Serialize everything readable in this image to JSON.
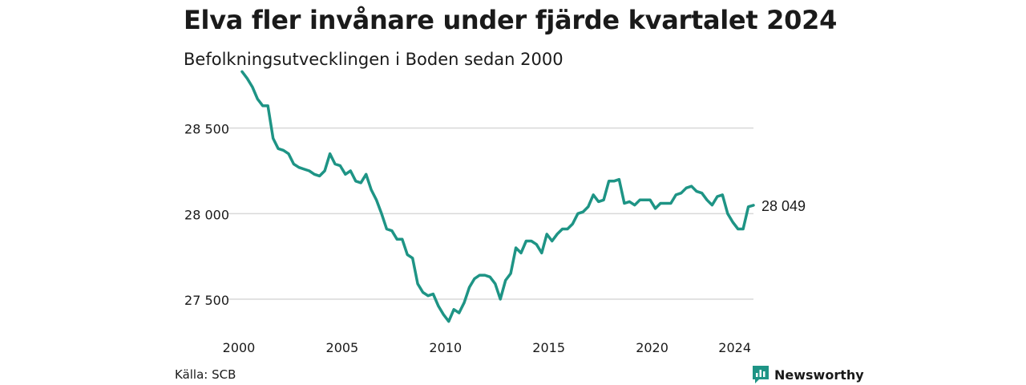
{
  "header": {
    "title": "Elva fler invånare under fjärde kvartalet 2024",
    "subtitle": "Befolkningsutvecklingen i Boden sedan 2000"
  },
  "footer": {
    "source": "Källa: SCB",
    "brand": "Newsworthy"
  },
  "colors": {
    "line": "#1e9485",
    "grid": "#d9d9d9",
    "text": "#1a1a1a",
    "brand": "#1e9485"
  },
  "chart_data": {
    "type": "line",
    "title": "Elva fler invånare under fjärde kvartalet 2024",
    "subtitle": "Befolkningsutvecklingen i Boden sedan 2000",
    "xlabel": "",
    "ylabel": "",
    "xlim": [
      2000.0,
      2024.75
    ],
    "ylim": [
      27350,
      28850
    ],
    "grid": "horizontal",
    "x_ticks": [
      2000,
      2005,
      2010,
      2015,
      2020,
      2024
    ],
    "x_tick_labels": [
      "2000",
      "2005",
      "2010",
      "2015",
      "2020",
      "2024"
    ],
    "y_ticks": [
      27500,
      28000,
      28500
    ],
    "y_tick_labels": [
      "27 500",
      "28 000",
      "28 500"
    ],
    "end_label": "28 049",
    "series": [
      {
        "x": [
          2000.0,
          2000.25,
          2000.5,
          2000.75,
          2001.0,
          2001.25,
          2001.5,
          2001.75,
          2002.0,
          2002.25,
          2002.5,
          2002.75,
          2003.0,
          2003.25,
          2003.5,
          2003.75,
          2004.0,
          2004.25,
          2004.5,
          2004.75,
          2005.0,
          2005.25,
          2005.5,
          2005.75,
          2006.0,
          2006.25,
          2006.5,
          2006.75,
          2007.0,
          2007.25,
          2007.5,
          2007.75,
          2008.0,
          2008.25,
          2008.5,
          2008.75,
          2009.0,
          2009.25,
          2009.5,
          2009.75,
          2010.0,
          2010.25,
          2010.5,
          2010.75,
          2011.0,
          2011.25,
          2011.5,
          2011.75,
          2012.0,
          2012.25,
          2012.5,
          2012.75,
          2013.0,
          2013.25,
          2013.5,
          2013.75,
          2014.0,
          2014.25,
          2014.5,
          2014.75,
          2015.0,
          2015.25,
          2015.5,
          2015.75,
          2016.0,
          2016.25,
          2016.5,
          2016.75,
          2017.0,
          2017.25,
          2017.5,
          2017.75,
          2018.0,
          2018.25,
          2018.5,
          2018.75,
          2019.0,
          2019.25,
          2019.5,
          2019.75,
          2020.0,
          2020.25,
          2020.5,
          2020.75,
          2021.0,
          2021.25,
          2021.5,
          2021.75,
          2022.0,
          2022.25,
          2022.5,
          2022.75,
          2023.0,
          2023.25,
          2023.5,
          2023.75,
          2024.0,
          2024.25,
          2024.5,
          2024.75
        ],
        "y": [
          28830,
          28790,
          28740,
          28670,
          28630,
          28630,
          28440,
          28380,
          28370,
          28350,
          28290,
          28270,
          28260,
          28250,
          28230,
          28220,
          28250,
          28350,
          28290,
          28280,
          28230,
          28250,
          28190,
          28180,
          28230,
          28140,
          28080,
          28000,
          27910,
          27900,
          27850,
          27850,
          27760,
          27740,
          27590,
          27540,
          27520,
          27530,
          27460,
          27410,
          27370,
          27440,
          27420,
          27480,
          27570,
          27620,
          27640,
          27640,
          27630,
          27590,
          27500,
          27610,
          27650,
          27800,
          27770,
          27840,
          27840,
          27820,
          27770,
          27880,
          27840,
          27880,
          27910,
          27910,
          27940,
          28000,
          28010,
          28040,
          28110,
          28070,
          28080,
          28190,
          28190,
          28200,
          28060,
          28070,
          28050,
          28080,
          28080,
          28080,
          28030,
          28060,
          28060,
          28060,
          28110,
          28120,
          28150,
          28160,
          28130,
          28120,
          28080,
          28050,
          28100,
          28110,
          28000,
          27950,
          27910,
          27910,
          28040,
          28049
        ]
      }
    ]
  }
}
